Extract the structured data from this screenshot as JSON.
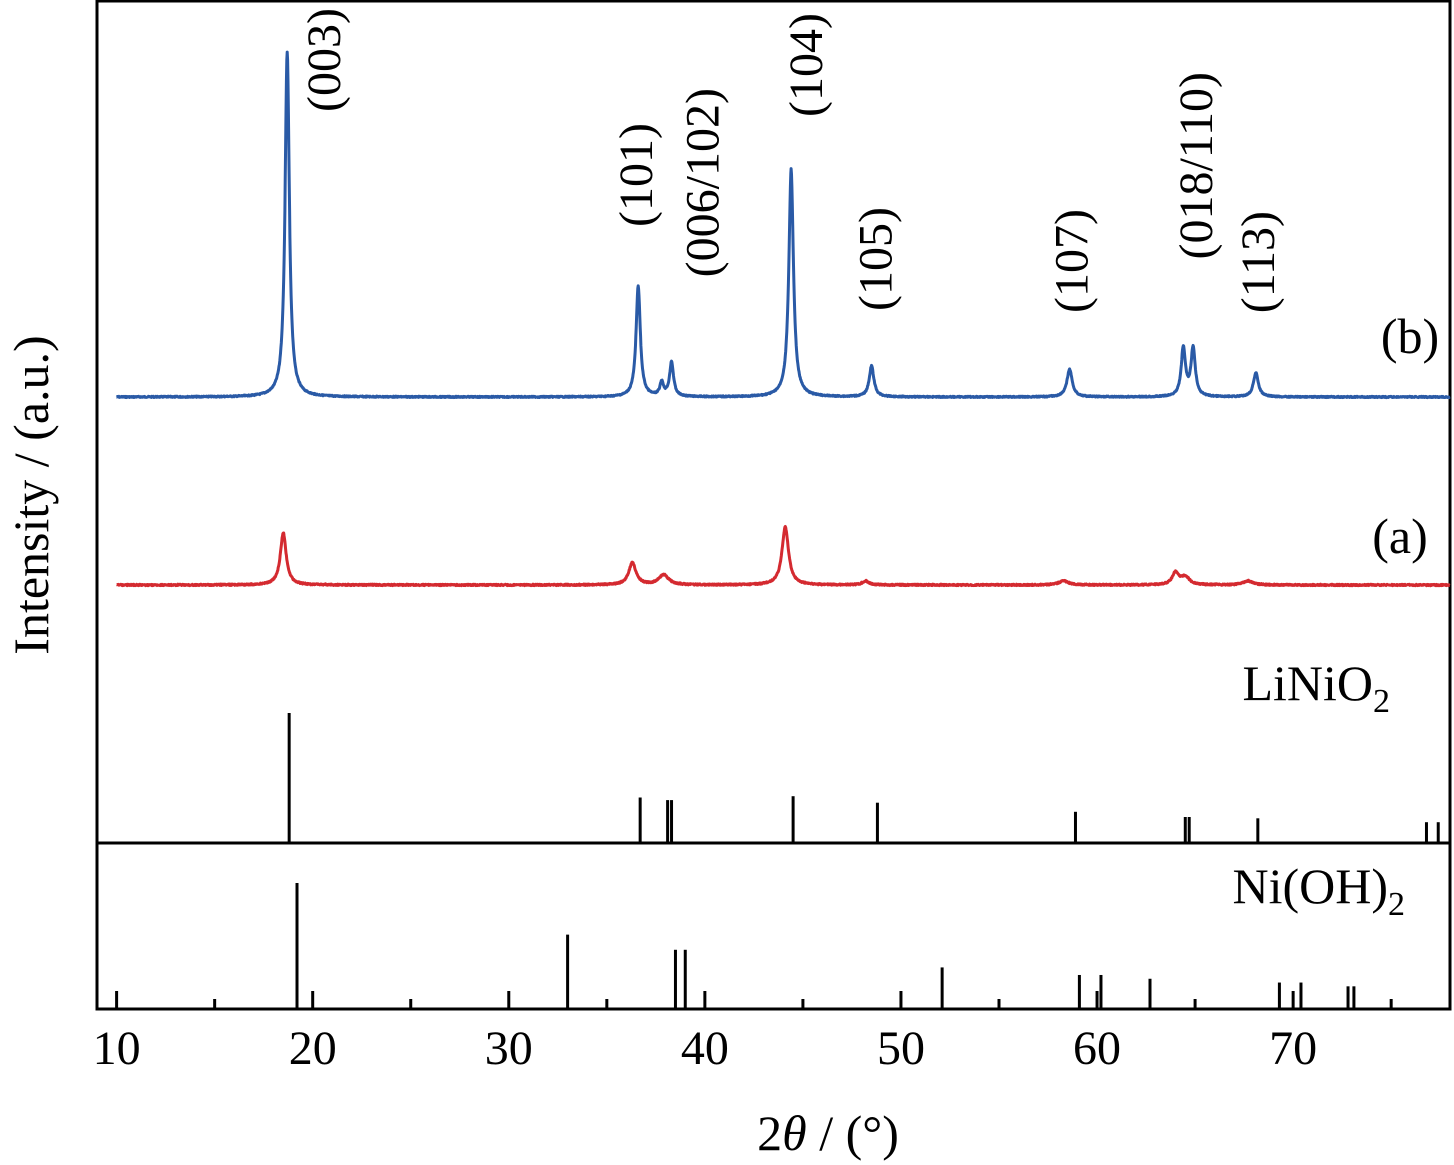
{
  "chart_data": {
    "type": "line",
    "xlabel": "2θ / (°)",
    "ylabel": "Intensity / (a.u.)",
    "xlim": [
      9,
      78
    ],
    "x_ticks": [
      10,
      20,
      30,
      40,
      50,
      60,
      70
    ],
    "grid": false,
    "series": [
      {
        "name": "(b)",
        "color": "#2a5aa6",
        "peaks": [
          {
            "x": 18.7,
            "h": 100,
            "w": 0.13
          },
          {
            "x": 36.6,
            "h": 32,
            "w": 0.13
          },
          {
            "x": 37.8,
            "h": 4,
            "w": 0.11
          },
          {
            "x": 38.3,
            "h": 10,
            "w": 0.12
          },
          {
            "x": 44.4,
            "h": 66,
            "w": 0.14
          },
          {
            "x": 48.5,
            "h": 9,
            "w": 0.14
          },
          {
            "x": 58.6,
            "h": 8,
            "w": 0.16
          },
          {
            "x": 64.4,
            "h": 14,
            "w": 0.13
          },
          {
            "x": 64.9,
            "h": 14,
            "w": 0.13
          },
          {
            "x": 68.1,
            "h": 7,
            "w": 0.15
          }
        ]
      },
      {
        "name": "(a)",
        "color": "#d42a30",
        "peaks": [
          {
            "x": 18.5,
            "h": 52,
            "w": 0.18
          },
          {
            "x": 36.3,
            "h": 22,
            "w": 0.22
          },
          {
            "x": 37.9,
            "h": 10,
            "w": 0.3
          },
          {
            "x": 44.1,
            "h": 58,
            "w": 0.2
          },
          {
            "x": 48.2,
            "h": 4,
            "w": 0.2
          },
          {
            "x": 58.3,
            "h": 4,
            "w": 0.3
          },
          {
            "x": 64.0,
            "h": 12,
            "w": 0.2
          },
          {
            "x": 64.5,
            "h": 8,
            "w": 0.25
          },
          {
            "x": 67.7,
            "h": 4,
            "w": 0.3
          }
        ]
      }
    ],
    "peak_labels": [
      {
        "x": 18.7,
        "text": "(003)"
      },
      {
        "x": 36.6,
        "text": "(101)"
      },
      {
        "x": 38.3,
        "text": "(006/102)"
      },
      {
        "x": 44.4,
        "text": "(104)"
      },
      {
        "x": 48.5,
        "text": "(105)"
      },
      {
        "x": 58.6,
        "text": "(107)"
      },
      {
        "x": 64.6,
        "text": "(018/110)"
      },
      {
        "x": 68.1,
        "text": "(113)"
      }
    ],
    "reference_patterns": [
      {
        "name": "LiNiO",
        "subscript": "2",
        "lines": [
          {
            "x": 18.8,
            "h": 100
          },
          {
            "x": 36.7,
            "h": 35
          },
          {
            "x": 38.1,
            "h": 33
          },
          {
            "x": 38.3,
            "h": 33
          },
          {
            "x": 44.5,
            "h": 36
          },
          {
            "x": 48.8,
            "h": 31
          },
          {
            "x": 58.9,
            "h": 24
          },
          {
            "x": 64.5,
            "h": 20
          },
          {
            "x": 64.7,
            "h": 20
          },
          {
            "x": 68.2,
            "h": 19
          },
          {
            "x": 76.8,
            "h": 16
          },
          {
            "x": 77.4,
            "h": 16
          }
        ]
      },
      {
        "name": "Ni(OH)",
        "subscript": "2",
        "lines": [
          {
            "x": 19.2,
            "h": 100
          },
          {
            "x": 33.0,
            "h": 59
          },
          {
            "x": 38.5,
            "h": 47
          },
          {
            "x": 39.0,
            "h": 47
          },
          {
            "x": 52.1,
            "h": 33
          },
          {
            "x": 59.1,
            "h": 27
          },
          {
            "x": 60.2,
            "h": 27
          },
          {
            "x": 62.7,
            "h": 24
          },
          {
            "x": 69.3,
            "h": 21
          },
          {
            "x": 70.4,
            "h": 21
          },
          {
            "x": 72.8,
            "h": 18
          },
          {
            "x": 73.1,
            "h": 18
          }
        ]
      }
    ]
  }
}
